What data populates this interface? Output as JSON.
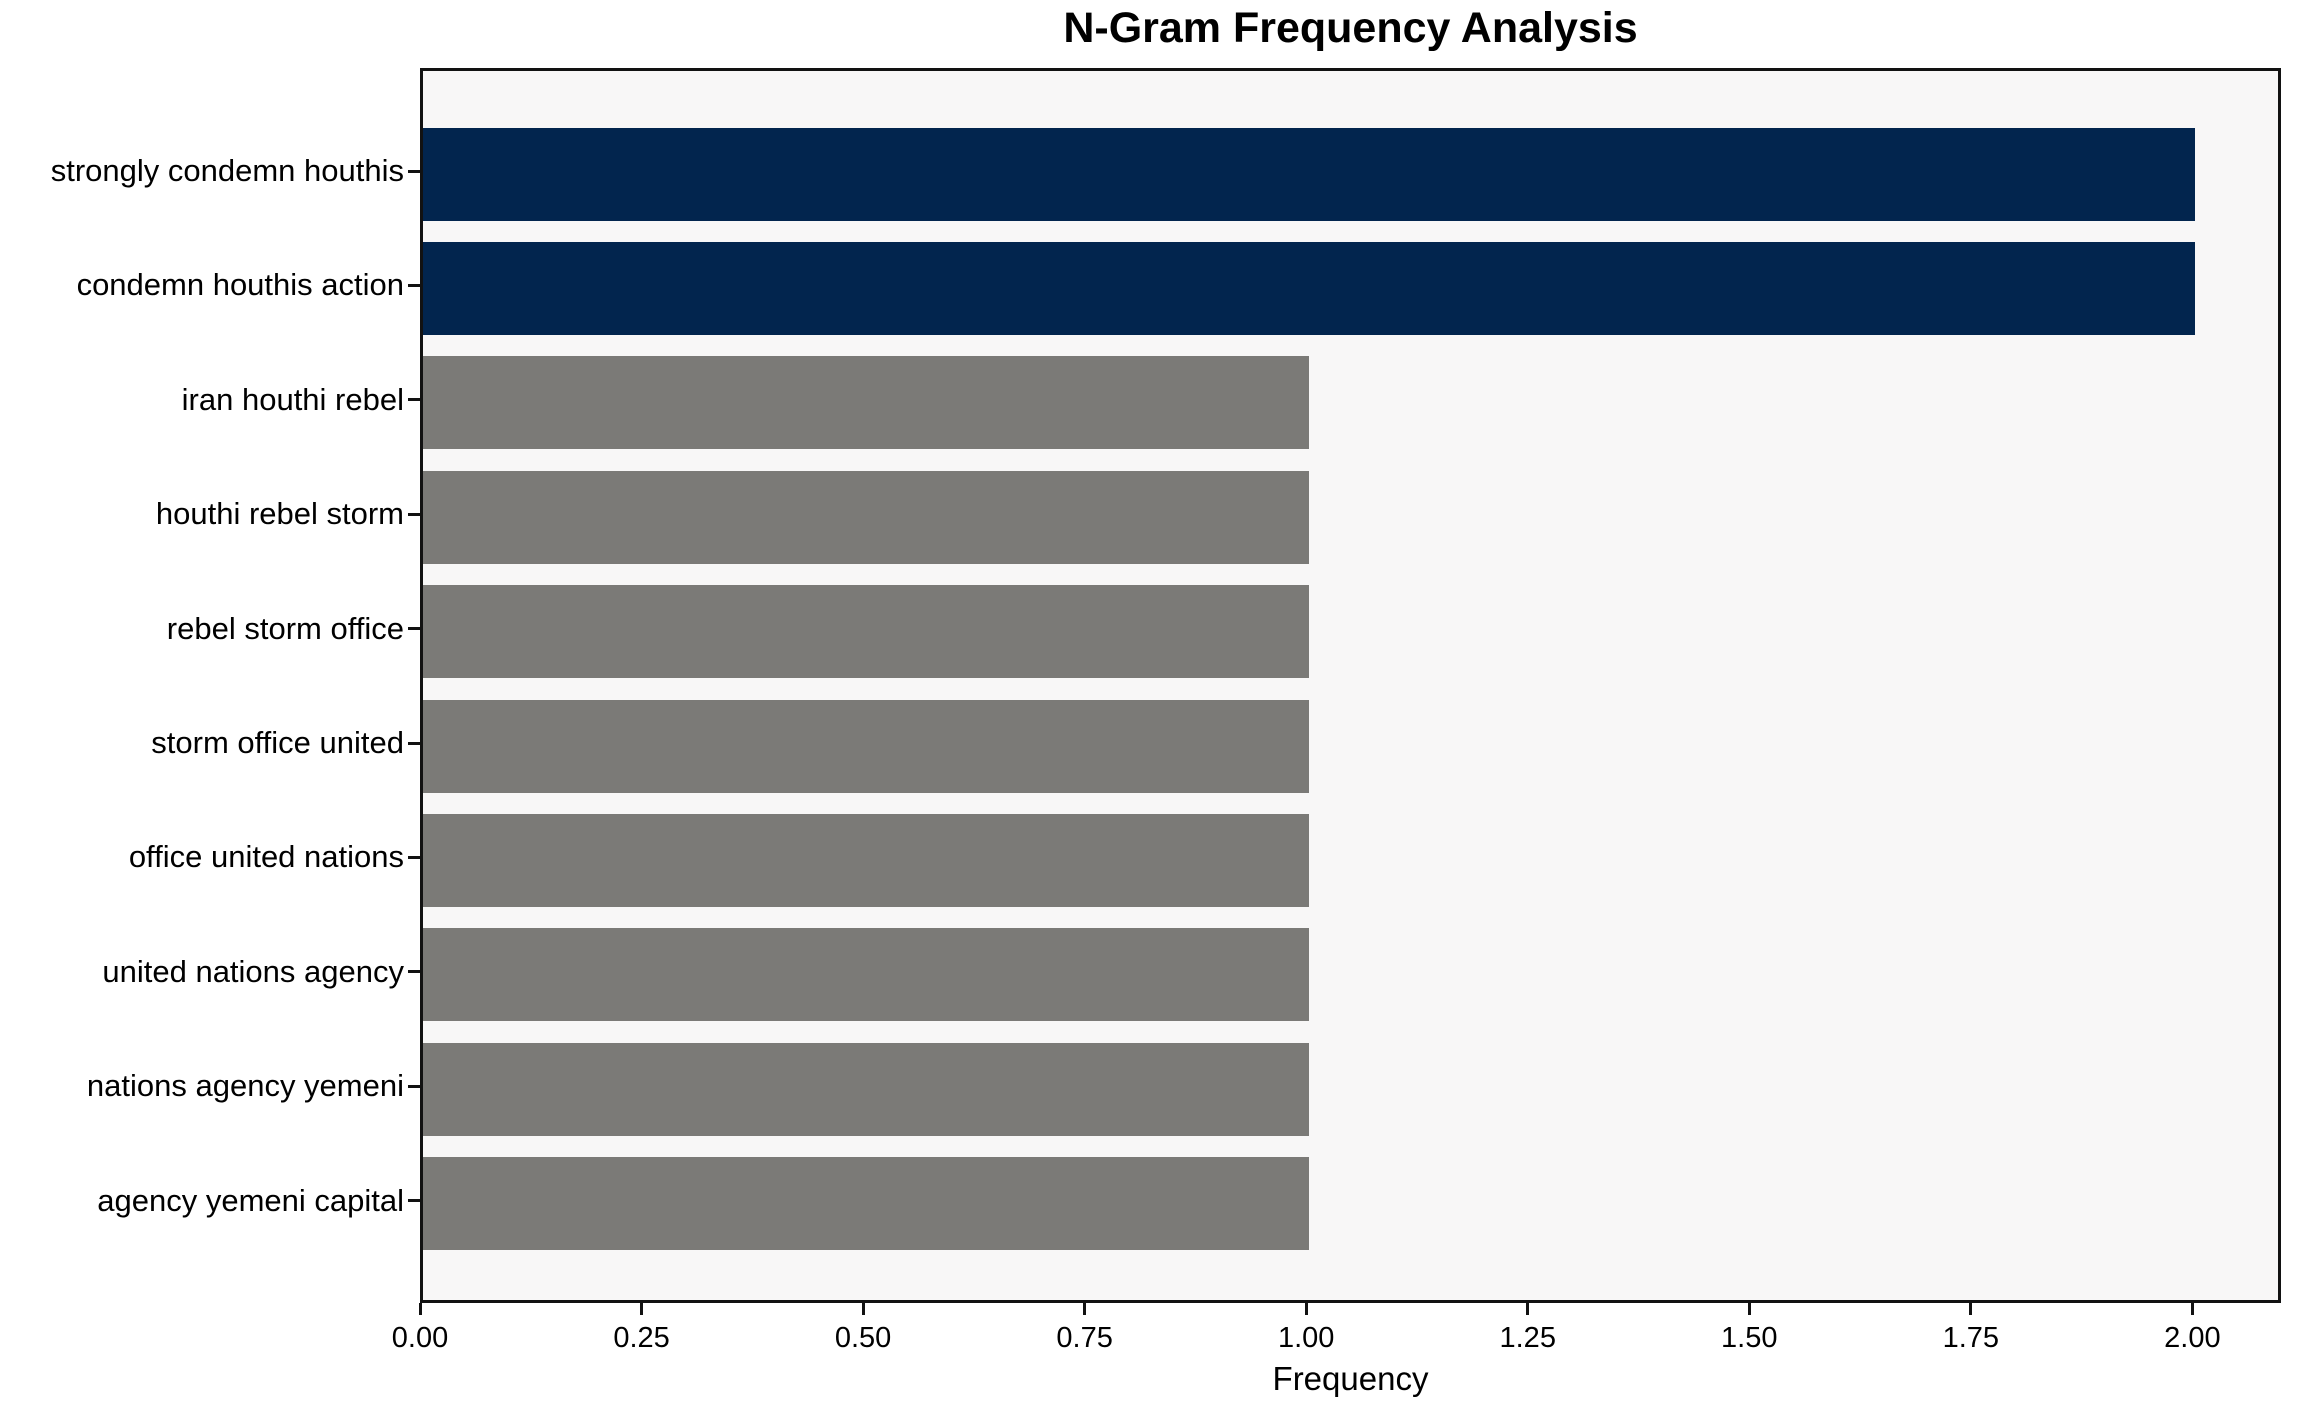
{
  "chart_data": {
    "type": "bar",
    "orientation": "horizontal",
    "title": "N-Gram Frequency Analysis",
    "xlabel": "Frequency",
    "ylabel": "",
    "categories": [
      "strongly condemn houthis",
      "condemn houthis action",
      "iran houthi rebel",
      "houthi rebel storm",
      "rebel storm office",
      "storm office united",
      "office united nations",
      "united nations agency",
      "nations agency yemeni",
      "agency yemeni capital"
    ],
    "values": [
      2,
      2,
      1,
      1,
      1,
      1,
      1,
      1,
      1,
      1
    ],
    "bar_colors": [
      "#02254e",
      "#02254e",
      "#7b7a77",
      "#7b7a77",
      "#7b7a77",
      "#7b7a77",
      "#7b7a77",
      "#7b7a77",
      "#7b7a77",
      "#7b7a77"
    ],
    "highlight_color": "#02254e",
    "default_color": "#7b7a77",
    "x_tick_values": [
      0,
      0.25,
      0.5,
      0.75,
      1.0,
      1.25,
      1.5,
      1.75,
      2.0
    ],
    "x_tick_labels": [
      "0.00",
      "0.25",
      "0.50",
      "0.75",
      "1.00",
      "1.25",
      "1.50",
      "1.75",
      "2.00"
    ],
    "xlim": [
      0,
      2.1
    ],
    "grid": false,
    "legend": false,
    "plot_background": "#f8f7f7"
  }
}
